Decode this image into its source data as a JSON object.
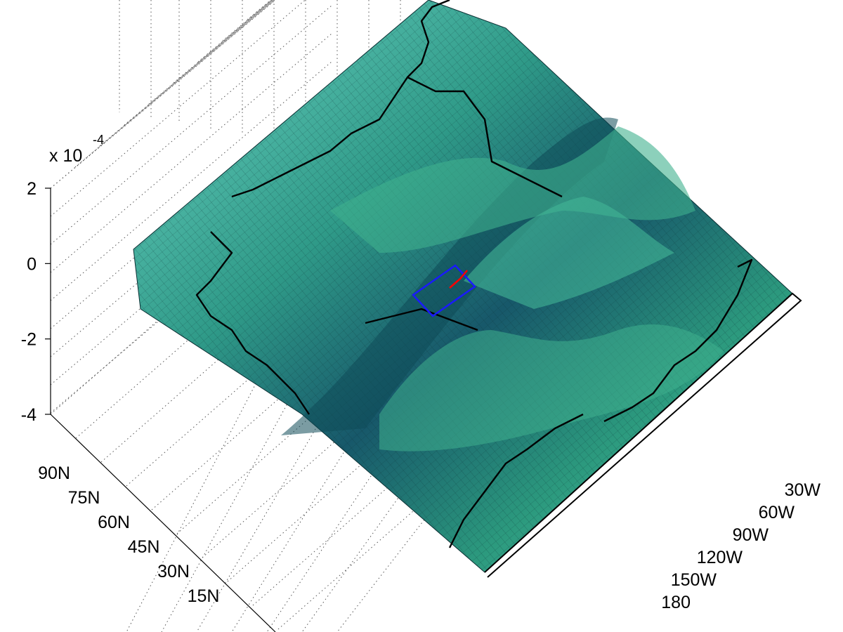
{
  "chart_data": {
    "type": "surface",
    "title": "",
    "xlabel": "",
    "ylabel": "",
    "zlabel": "",
    "z_multiplier_label": "x 10",
    "z_multiplier_exponent": "-4",
    "z_ticks": [
      "2",
      "0",
      "-2",
      "-4"
    ],
    "z_range": [
      -4,
      2
    ],
    "latitude_ticks": [
      "90N",
      "75N",
      "60N",
      "45N",
      "30N",
      "15N"
    ],
    "longitude_ticks": [
      "30W",
      "60W",
      "90W",
      "120W",
      "150W",
      "180"
    ],
    "grid": true,
    "surface_color": "#2e9e8a",
    "surface_color_light": "#7fe3d4",
    "surface_color_dark": "#0d4a55",
    "coastline_color": "#000000",
    "marker_box_color": "#1a1aff",
    "marker_track_color": "#ff0000"
  }
}
